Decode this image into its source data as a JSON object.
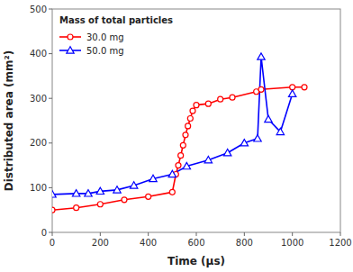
{
  "chart_data": {
    "type": "line",
    "title": "Mass of total particles",
    "xlabel": "Time (μs)",
    "ylabel": "Distributed area (mm²)",
    "xlim": [
      0,
      1200
    ],
    "ylim": [
      0,
      500
    ],
    "xticks": [
      0,
      200,
      400,
      600,
      800,
      1000,
      1200
    ],
    "yticks": [
      0,
      100,
      200,
      300,
      400,
      500
    ],
    "grid": false,
    "legend": "upper left",
    "series": [
      {
        "name": "30.0 mg",
        "color": "#ff0000",
        "marker": "circle",
        "x": [
          0,
          100,
          200,
          300,
          400,
          500,
          515,
          525,
          535,
          545,
          555,
          565,
          575,
          585,
          600,
          650,
          700,
          750,
          850,
          870,
          1000,
          1050
        ],
        "values": [
          50,
          55,
          63,
          73,
          80,
          90,
          130,
          150,
          172,
          195,
          218,
          238,
          255,
          272,
          285,
          288,
          298,
          302,
          315,
          320,
          325,
          325
        ]
      },
      {
        "name": "50.0 mg",
        "color": "#0000ff",
        "marker": "triangle",
        "x": [
          0,
          100,
          150,
          200,
          270,
          340,
          420,
          500,
          560,
          650,
          730,
          800,
          855,
          870,
          900,
          950,
          1000
        ],
        "values": [
          85,
          87,
          87,
          92,
          95,
          105,
          120,
          130,
          148,
          162,
          178,
          200,
          210,
          393,
          253,
          225,
          310
        ]
      }
    ]
  }
}
